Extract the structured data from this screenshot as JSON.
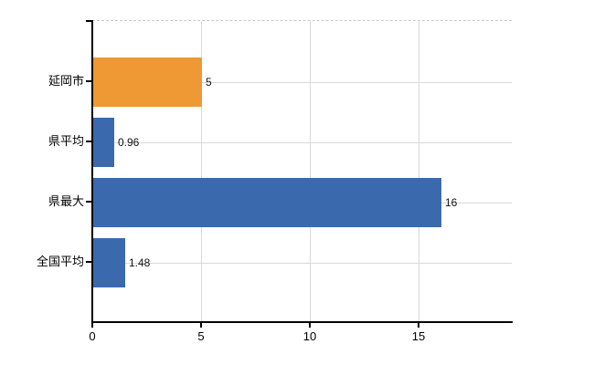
{
  "chart_data": {
    "type": "bar",
    "orientation": "horizontal",
    "title": "",
    "xlabel": "",
    "ylabel": "",
    "categories": [
      "延岡市",
      "県平均",
      "県最大",
      "全国平均"
    ],
    "values": [
      5,
      0.96,
      16,
      1.48
    ],
    "value_labels": [
      "5",
      "0.96",
      "16",
      "1.48"
    ],
    "series": [
      {
        "name": "",
        "values": [
          5,
          0.96,
          16,
          1.48
        ]
      }
    ],
    "x_ticks": [
      0,
      5,
      10,
      15
    ],
    "x_tick_labels": [
      "0",
      "5",
      "10",
      "15"
    ],
    "xlim": [
      0,
      19.3
    ],
    "grid": true,
    "legend": "none",
    "colors": {
      "bar_colors": [
        "#EE9933",
        "#3A69AD",
        "#3A69AD",
        "#3A69AD"
      ],
      "gridline": "#d9d9d9",
      "axis": "#000000",
      "label_text": "#000000",
      "background": "#ffffff"
    }
  }
}
